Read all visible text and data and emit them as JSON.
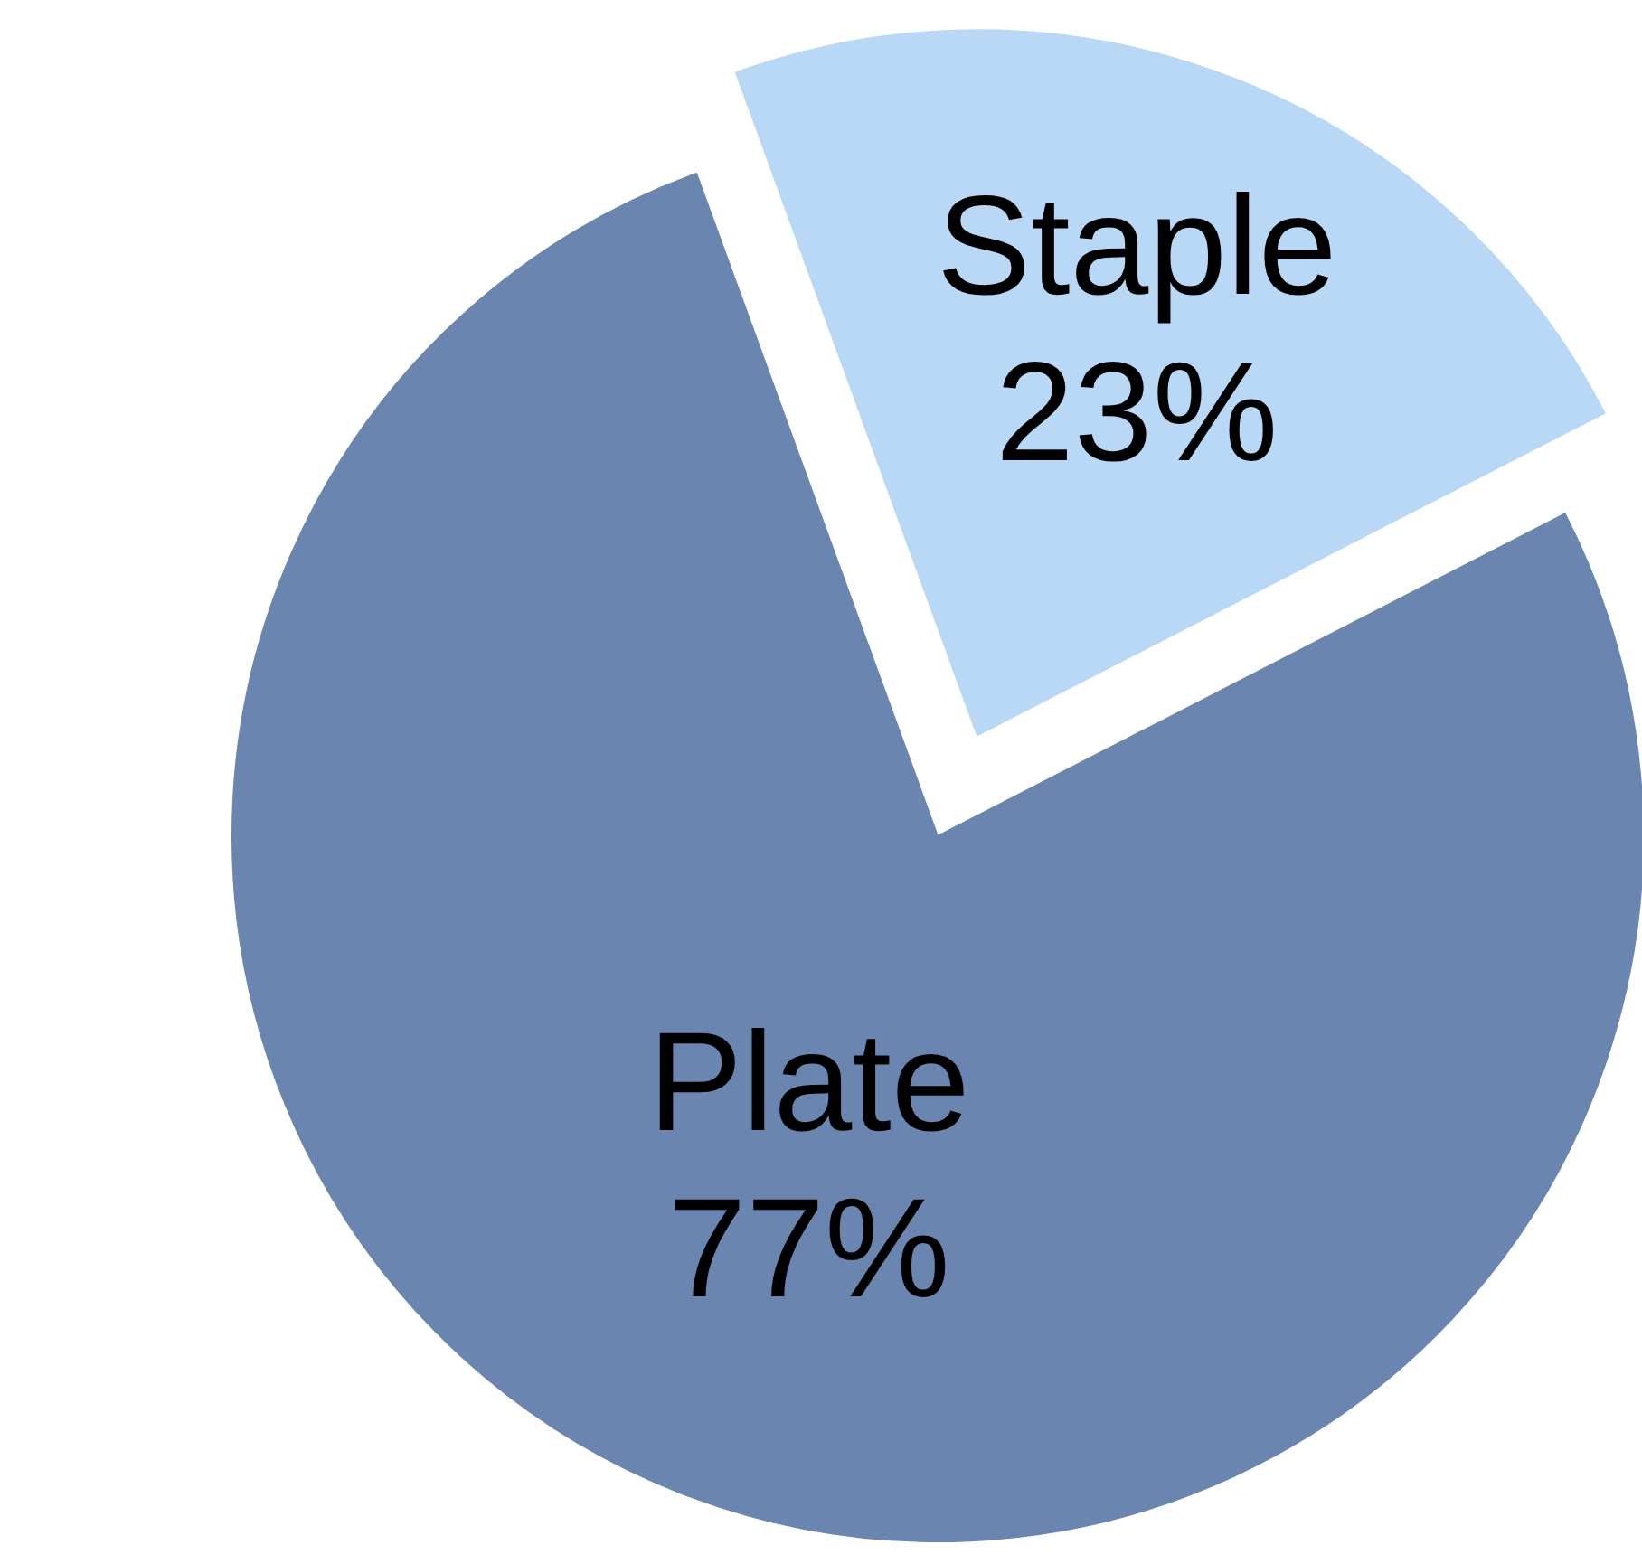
{
  "chart_data": {
    "type": "pie",
    "categories": [
      "Plate",
      "Staple"
    ],
    "values": [
      77,
      23
    ],
    "value_labels": [
      "77%",
      "23%"
    ],
    "colors": [
      "#6a86b0",
      "#b8d8f5"
    ]
  }
}
